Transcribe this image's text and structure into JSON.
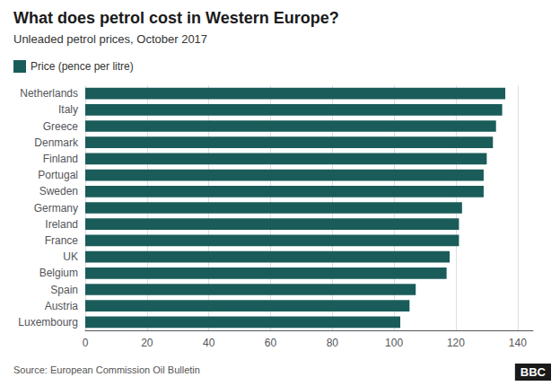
{
  "chart_data": {
    "type": "bar",
    "orientation": "horizontal",
    "title": "What does petrol cost in Western Europe?",
    "subtitle": "Unleaded petrol prices, October 2017",
    "annotations": [
      "Source: European Commission Oil Bulletin",
      "BBC"
    ],
    "categories": [
      "Netherlands",
      "Italy",
      "Greece",
      "Denmark",
      "Finland",
      "Portugal",
      "Sweden",
      "Germany",
      "Ireland",
      "France",
      "UK",
      "Belgium",
      "Spain",
      "Austria",
      "Luxembourg"
    ],
    "series": [
      {
        "name": "Price (pence per litre)",
        "color": "#1a5c5a",
        "values": [
          136,
          135,
          133,
          132,
          130,
          129,
          129,
          122,
          121,
          121,
          118,
          117,
          107,
          105,
          102
        ]
      }
    ],
    "xlim": [
      0,
      145
    ],
    "xticks": [
      0,
      20,
      40,
      60,
      80,
      100,
      120,
      140
    ],
    "grid": true,
    "legend": "top left"
  }
}
